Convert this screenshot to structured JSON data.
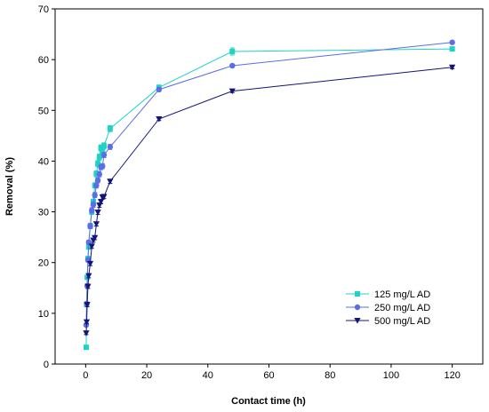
{
  "chart_data": {
    "type": "line",
    "title": "",
    "xlabel": "Contact time (h)",
    "ylabel": "Removal (%)",
    "xlim": [
      -10,
      130
    ],
    "ylim": [
      0,
      70
    ],
    "x_ticks": [
      0,
      20,
      40,
      60,
      80,
      100,
      120
    ],
    "y_ticks": [
      0,
      10,
      20,
      30,
      40,
      50,
      60,
      70
    ],
    "x_tick_labels": [
      "0",
      "20",
      "40",
      "60",
      "80",
      "100",
      "120"
    ],
    "y_tick_labels": [
      "0",
      "10",
      "20",
      "30",
      "40",
      "50",
      "60",
      "70"
    ],
    "grid": false,
    "legend_position": "bottom-right",
    "error_bars": true,
    "series": [
      {
        "name": "125 mg/L AD",
        "color": "#1fd3c4",
        "marker": "square",
        "x": [
          0.17,
          0.33,
          0.5,
          0.75,
          1,
          1.5,
          2,
          2.5,
          3,
          3.5,
          4,
          4.5,
          5,
          5.5,
          6,
          8,
          24,
          48,
          120
        ],
        "y": [
          3.3,
          11.8,
          17.1,
          20.8,
          23.1,
          27.2,
          30.0,
          32.0,
          35.2,
          37.5,
          39.5,
          40.8,
          42.6,
          41.9,
          43.0,
          46.4,
          54.5,
          61.6,
          62.1
        ],
        "err": [
          0.3,
          0.3,
          0.4,
          0.4,
          0.5,
          0.5,
          0.5,
          0.5,
          0.5,
          0.6,
          0.6,
          0.6,
          0.6,
          0.6,
          0.6,
          0.6,
          0.5,
          0.7,
          0.4
        ]
      },
      {
        "name": "250 mg/L AD",
        "color": "#5b6ee6",
        "marker": "circle",
        "x": [
          0.17,
          0.33,
          0.5,
          0.75,
          1,
          1.5,
          2,
          2.5,
          3,
          3.5,
          4,
          4.5,
          5,
          5.5,
          6,
          8,
          24,
          48,
          120
        ],
        "y": [
          7.7,
          11.9,
          15.4,
          20.5,
          24.0,
          27.2,
          30.3,
          31.4,
          33.3,
          35.2,
          36.2,
          37.4,
          38.8,
          39.0,
          41.2,
          42.8,
          54.1,
          58.8,
          63.4
        ],
        "err": [
          0.3,
          0.3,
          0.4,
          0.4,
          0.4,
          0.5,
          0.5,
          0.5,
          0.5,
          0.5,
          0.5,
          0.5,
          0.5,
          0.5,
          0.5,
          0.5,
          0.4,
          0.3,
          0.3
        ]
      },
      {
        "name": "500 mg/L AD",
        "color": "#141478",
        "marker": "triangle-down",
        "x": [
          0.17,
          0.33,
          0.5,
          0.75,
          1,
          1.5,
          2,
          2.5,
          3,
          3.5,
          4,
          4.5,
          5,
          5.5,
          6,
          8,
          24,
          48,
          120
        ],
        "y": [
          6.1,
          8.3,
          11.7,
          15.3,
          17.4,
          19.8,
          23.2,
          24.4,
          24.9,
          27.6,
          29.9,
          31.3,
          32.0,
          32.9,
          33.0,
          36.0,
          48.3,
          53.8,
          58.5
        ],
        "err": [
          0.3,
          0.3,
          0.4,
          0.4,
          0.4,
          0.4,
          0.4,
          0.4,
          0.4,
          0.4,
          0.4,
          0.4,
          0.4,
          0.4,
          0.4,
          0.4,
          0.3,
          0.3,
          0.3
        ]
      }
    ]
  }
}
